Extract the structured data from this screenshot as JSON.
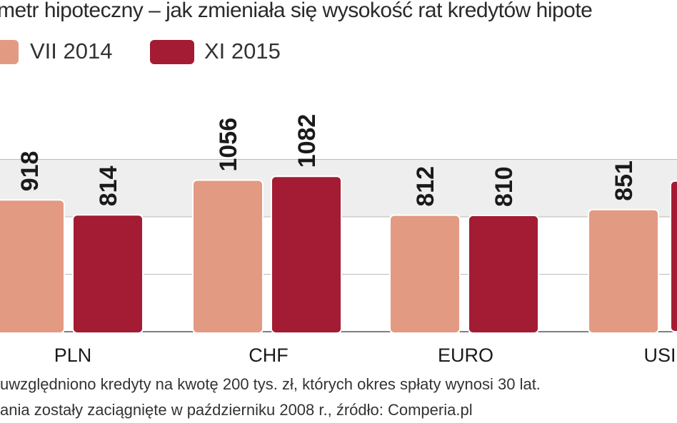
{
  "title": "metr hipoteczny – jak zmieniała się wysokość rat kredytów hipote",
  "notes": [
    "uwzględniono kredyty na kwotę 200 tys. zł, których okres spłaty wynosi 30 lat.",
    "ania zostały zaciągnięte w październiku 2008 r., źródło: Comperia.pl"
  ],
  "colors": {
    "vii2014": "#e39a82",
    "xi2015": "#a31c33",
    "band": "#eeeeee",
    "gridline": "#bbbbbb",
    "baseline": "#555555"
  },
  "chart_data": {
    "type": "bar",
    "title": "metr hipoteczny – jak zmieniała się wysokość rat kredytów hipote",
    "xlabel": "",
    "ylabel": "",
    "categories": [
      "PLN",
      "CHF",
      "EURO",
      "USI"
    ],
    "series": [
      {
        "name": "VII 2014",
        "values": [
          918,
          1056,
          812,
          851
        ]
      },
      {
        "name": "XI 2015",
        "values": [
          814,
          1082,
          810,
          null
        ]
      }
    ],
    "ylim": [
      0,
      1200
    ],
    "grid": true,
    "legend": "top-left"
  }
}
